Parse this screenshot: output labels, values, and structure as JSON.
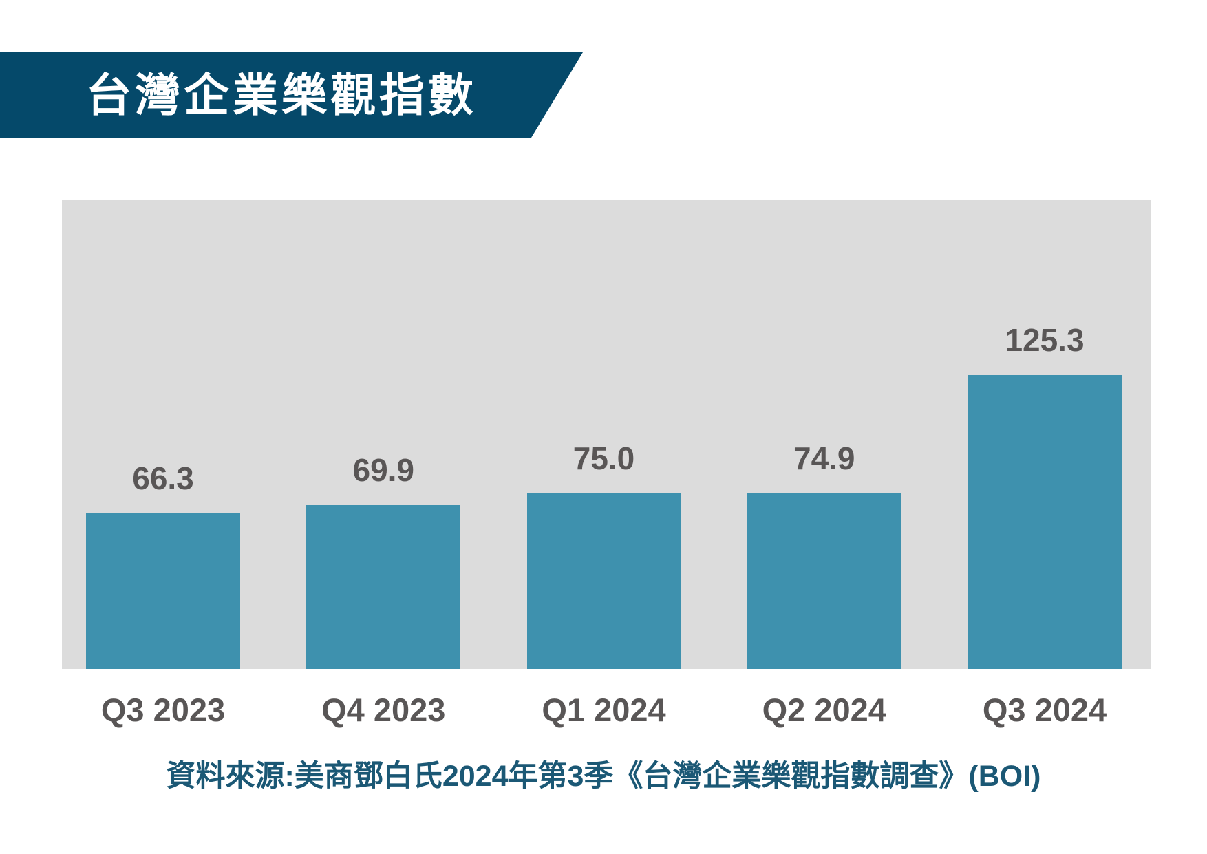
{
  "title": {
    "text": "台灣企業樂觀指數"
  },
  "source": {
    "text": "資料來源:美商鄧白氏2024年第3季《台灣企業樂觀指數調查》(BOI)"
  },
  "colors": {
    "banner_bg": "#05496a",
    "title_text": "#ffffff",
    "plot_bg": "#dcdcdc",
    "bar": "#3e91ae",
    "data_label": "#595656",
    "axis_label": "#595656",
    "source_text": "#1b5875"
  },
  "chart_data": {
    "type": "bar",
    "title": "台灣企業樂觀指數",
    "categories": [
      "Q3 2023",
      "Q4 2023",
      "Q1 2024",
      "Q2 2024",
      "Q3 2024"
    ],
    "values": [
      66.3,
      69.9,
      75.0,
      74.9,
      125.3
    ],
    "value_labels": [
      "66.3",
      "69.9",
      "75.0",
      "74.9",
      "125.3"
    ],
    "xlabel": "",
    "ylabel": "",
    "ylim": [
      0,
      200
    ],
    "grid": false,
    "legend": false,
    "axes_visible": false,
    "bar_color": "#3e91ae",
    "plot_background": "#dcdcdc"
  }
}
